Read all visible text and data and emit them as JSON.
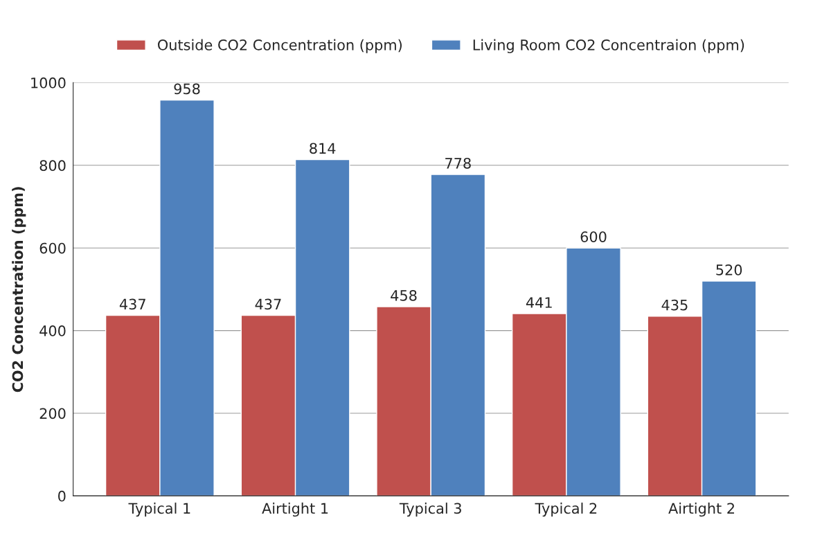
{
  "chart_data": {
    "type": "bar",
    "categories": [
      "Typical 1",
      "Airtight 1",
      "Typical 3",
      "Typical 2",
      "Airtight 2"
    ],
    "series": [
      {
        "name": "Outside CO2 Concentration (ppm)",
        "color": "#c0504d",
        "values": [
          437,
          437,
          458,
          441,
          435
        ]
      },
      {
        "name": "Living Room CO2 Concentraion (ppm)",
        "color": "#4f81bd",
        "values": [
          958,
          814,
          778,
          600,
          520
        ]
      }
    ],
    "ylabel": "CO2 Concentration (ppm)",
    "ylim": [
      0,
      1000
    ],
    "yticks": [
      0,
      200,
      400,
      600,
      800,
      1000
    ],
    "grid": "y",
    "legend": "top",
    "data_labels": true
  }
}
